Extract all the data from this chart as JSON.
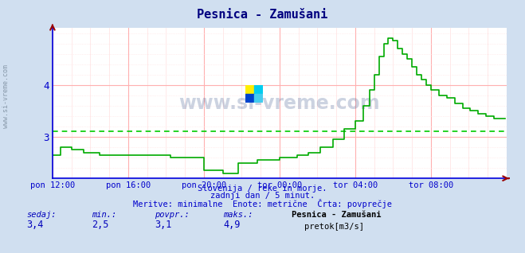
{
  "title": "Pesnica - Zamušani",
  "title_color": "#000080",
  "bg_color": "#d0dff0",
  "plot_bg_color": "#ffffff",
  "line_color": "#00aa00",
  "avg_line_color": "#00cc00",
  "avg_value": 3.1,
  "ymin": 2.2,
  "ymax": 5.1,
  "yticks": [
    3,
    4
  ],
  "grid_color_h": "#ffb0b0",
  "grid_color_v": "#ffb0b0",
  "grid_color_minor": "#ffe0e0",
  "xlabel_color": "#0000cc",
  "ylabel_color": "#0000cc",
  "watermark": "www.si-vreme.com",
  "subtitle1": "Slovenija / reke in morje.",
  "subtitle2": "zadnji dan / 5 minut.",
  "subtitle3": "Meritve: minimalne  Enote: metrične  Črta: povprečje",
  "subtitle_color": "#0000cc",
  "legend_title": "Pesnica - Zamušani",
  "legend_label": "pretok[m3/s]",
  "legend_color": "#00aa00",
  "stats_sedaj": "3,4",
  "stats_min": "2,5",
  "stats_povpr": "3,1",
  "stats_maks": "4,9",
  "x_tick_labels": [
    "pon 12:00",
    "pon 16:00",
    "pon 20:00",
    "tor 00:00",
    "tor 04:00",
    "tor 08:00"
  ],
  "x_tick_positions": [
    0,
    48,
    96,
    144,
    192,
    240
  ],
  "total_points": 288,
  "axis_color": "#0000dd",
  "arrow_color": "#990000",
  "left_label": "www.si-vreme.com",
  "left_label_color": "#8899aa"
}
